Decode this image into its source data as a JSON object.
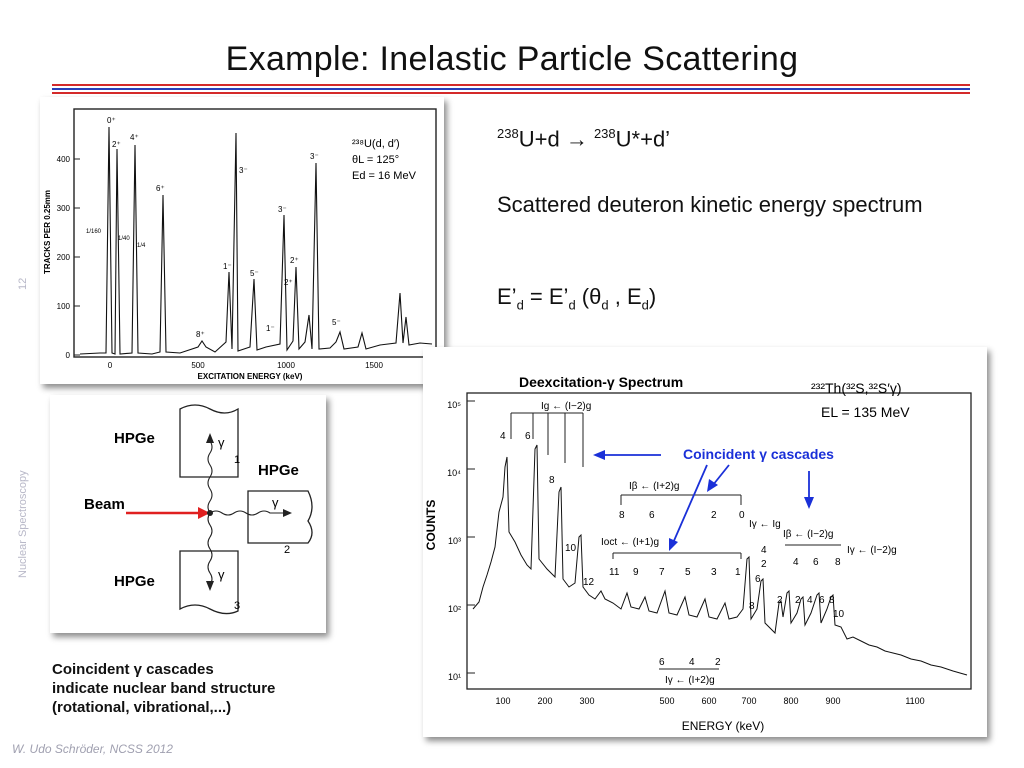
{
  "slide": {
    "title": "Example: Inelastic Particle Scattering",
    "page_number": "12",
    "course": "Nuclear Spectroscopy",
    "footer": "W. Udo Schröder, NCSS 2012"
  },
  "text": {
    "reaction": {
      "mass_a": "238",
      "lhs": "U+d",
      "arrow": "→",
      "mass_b": "238",
      "rhs": "U*+d’"
    },
    "description": "Scattered deuteron kinetic energy spectrum",
    "formula": {
      "lhs": "E’",
      "sub1": "d",
      "eq": " = E’",
      "sub2": "d",
      "open": " (",
      "theta": "θ",
      "sub3": "d",
      "comma": " , E",
      "sub4": "d",
      "close": ")"
    }
  },
  "caption": {
    "line1": "Coincident γ cascades",
    "line2": "indicate nuclear band structure",
    "line3": "(rotational, vibrational,...)"
  },
  "fig1": {
    "reaction": "²³⁸U(d, d′)",
    "theta": "θL = 125°",
    "energy": "Ed = 16 MeV",
    "ylabel": "TRACKS PER 0.25mm",
    "xlabel": "EXCITATION ENERGY (keV)",
    "yticks": [
      "0",
      "100",
      "200",
      "300",
      "400"
    ],
    "xticks": [
      "0",
      "500",
      "1000",
      "1500"
    ],
    "peak_labels": [
      "0⁺",
      "2⁺",
      "4⁺",
      "6⁺",
      "8⁺",
      "1⁻",
      "3⁻",
      "5⁻",
      "3⁻",
      "2⁺",
      "2⁺",
      "3⁻",
      "5⁻",
      "1⁻"
    ],
    "small_labels": [
      "1/160",
      "1/40",
      "1/4"
    ]
  },
  "fig2": {
    "det1": "HPGe",
    "det2": "HPGe",
    "det3": "HPGe",
    "beam": "Beam",
    "gamma": "γ",
    "n1": "1",
    "n2": "2",
    "n3": "3"
  },
  "fig3": {
    "title": "Deexcitation-γ Spectrum",
    "reaction": "²³²Th(³²S,³²S′γ)",
    "energy": "EL = 135 MeV",
    "coincident": "Coincident γ cascades",
    "ylabel": "COUNTS",
    "xlabel": "ENERGY  (keV)",
    "yticks": [
      "10¹",
      "10²",
      "10³",
      "10⁴",
      "10⁵"
    ],
    "xticks": [
      "100",
      "200",
      "300",
      "500",
      "600",
      "700",
      "800",
      "900",
      "1100"
    ],
    "bands": [
      "Ig ← (I−2)g",
      "Iβ ← (I+2)g",
      "Ioct ← (I+1)g",
      "Iγ ← Ig",
      "Iβ ← (I−2)g",
      "Iγ ← (I−2)g",
      "Iγ ← (I+2)g"
    ],
    "band_spins": [
      "4",
      "6",
      "8",
      "10",
      "12",
      "8",
      "6",
      "2",
      "0",
      "11",
      "9",
      "7",
      "5",
      "3",
      "1",
      "4",
      "2",
      "6",
      "8",
      "2",
      "4",
      "6",
      "8",
      "2",
      "4",
      "6",
      "8",
      "10",
      "6",
      "4",
      "2"
    ]
  }
}
